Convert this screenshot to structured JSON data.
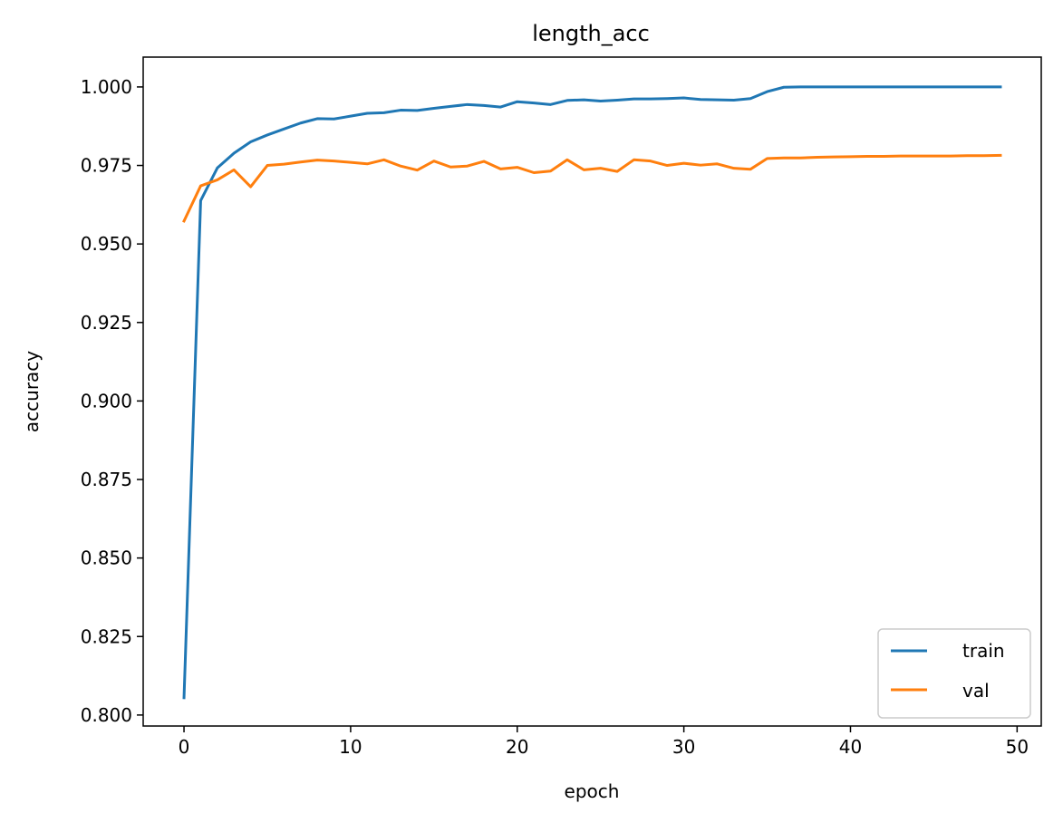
{
  "chart_data": {
    "type": "line",
    "title": "length_acc",
    "xlabel": "epoch",
    "ylabel": "accuracy",
    "xlim": [
      -2.45,
      51.45
    ],
    "ylim": [
      0.7965,
      1.0095
    ],
    "xticks": [
      0,
      10,
      20,
      30,
      40,
      50
    ],
    "yticks": [
      0.8,
      0.825,
      0.85,
      0.875,
      0.9,
      0.925,
      0.95,
      0.975,
      1.0
    ],
    "ytick_labels": [
      "0.800",
      "0.825",
      "0.850",
      "0.875",
      "0.900",
      "0.925",
      "0.950",
      "0.975",
      "1.000"
    ],
    "grid": false,
    "legend_position": "lower-right",
    "x": [
      0,
      1,
      2,
      3,
      4,
      5,
      6,
      7,
      8,
      9,
      10,
      11,
      12,
      13,
      14,
      15,
      16,
      17,
      18,
      19,
      20,
      21,
      22,
      23,
      24,
      25,
      26,
      27,
      28,
      29,
      30,
      31,
      32,
      33,
      34,
      35,
      36,
      37,
      38,
      39,
      40,
      41,
      42,
      43,
      44,
      45,
      46,
      47,
      48,
      49
    ],
    "series": [
      {
        "name": "train",
        "color": "#1f77b4",
        "values": [
          0.8055,
          0.9638,
          0.9742,
          0.9789,
          0.9825,
          0.9847,
          0.9866,
          0.9885,
          0.9899,
          0.9898,
          0.9907,
          0.9916,
          0.9918,
          0.9926,
          0.9925,
          0.9932,
          0.9938,
          0.9944,
          0.9941,
          0.9936,
          0.9953,
          0.9949,
          0.9944,
          0.9957,
          0.9959,
          0.9955,
          0.9958,
          0.9962,
          0.9962,
          0.9963,
          0.9965,
          0.996,
          0.9959,
          0.9958,
          0.9963,
          0.9985,
          0.9999,
          1.0,
          1.0,
          1.0,
          1.0,
          1.0,
          1.0,
          1.0,
          1.0,
          1.0,
          1.0,
          1.0,
          1.0,
          1.0
        ]
      },
      {
        "name": "val",
        "color": "#ff7f0e",
        "values": [
          0.9573,
          0.9685,
          0.9704,
          0.9736,
          0.9682,
          0.975,
          0.9754,
          0.9761,
          0.9767,
          0.9764,
          0.976,
          0.9755,
          0.9768,
          0.9748,
          0.9735,
          0.9764,
          0.9745,
          0.9748,
          0.9763,
          0.9739,
          0.9744,
          0.9727,
          0.9732,
          0.9768,
          0.9736,
          0.9741,
          0.9731,
          0.9768,
          0.9764,
          0.975,
          0.9757,
          0.9751,
          0.9755,
          0.9741,
          0.9738,
          0.9772,
          0.9774,
          0.9774,
          0.9776,
          0.9777,
          0.9778,
          0.9779,
          0.9779,
          0.978,
          0.978,
          0.978,
          0.978,
          0.9781,
          0.9781,
          0.9782
        ]
      }
    ]
  }
}
